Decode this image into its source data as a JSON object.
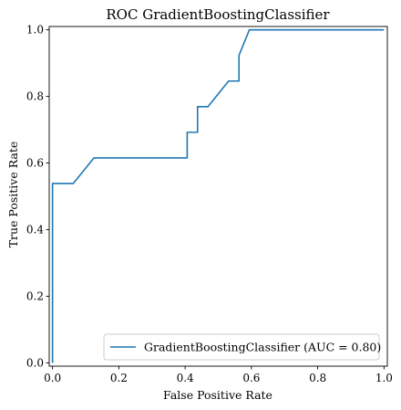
{
  "chart_data": {
    "type": "line",
    "title": "ROC GradientBoostingClassifier",
    "xlabel": "False Positive Rate",
    "ylabel": "True Positive Rate",
    "xlim": [
      -0.01,
      1.01
    ],
    "ylim": [
      -0.01,
      1.01
    ],
    "x_ticks": [
      "0.0",
      "0.2",
      "0.4",
      "0.6",
      "0.8",
      "1.0"
    ],
    "y_ticks": [
      "0.0",
      "0.2",
      "0.4",
      "0.6",
      "0.8",
      "1.0"
    ],
    "grid": false,
    "legend_position": "lower-right",
    "series": [
      {
        "name": "GradientBoostingClassifier (AUC = 0.80)",
        "color": "#1f77b4",
        "x": [
          0.0,
          0.0,
          0.0,
          0.0,
          0.0625,
          0.125,
          0.40625,
          0.40625,
          0.4375,
          0.4375,
          0.46875,
          0.53125,
          0.5625,
          0.5625,
          0.59375,
          1.0
        ],
        "y": [
          0.0,
          0.0769,
          0.5385,
          0.5385,
          0.5385,
          0.6154,
          0.6154,
          0.6923,
          0.6923,
          0.7692,
          0.7692,
          0.8462,
          0.8462,
          0.9231,
          1.0,
          1.0
        ]
      }
    ]
  }
}
